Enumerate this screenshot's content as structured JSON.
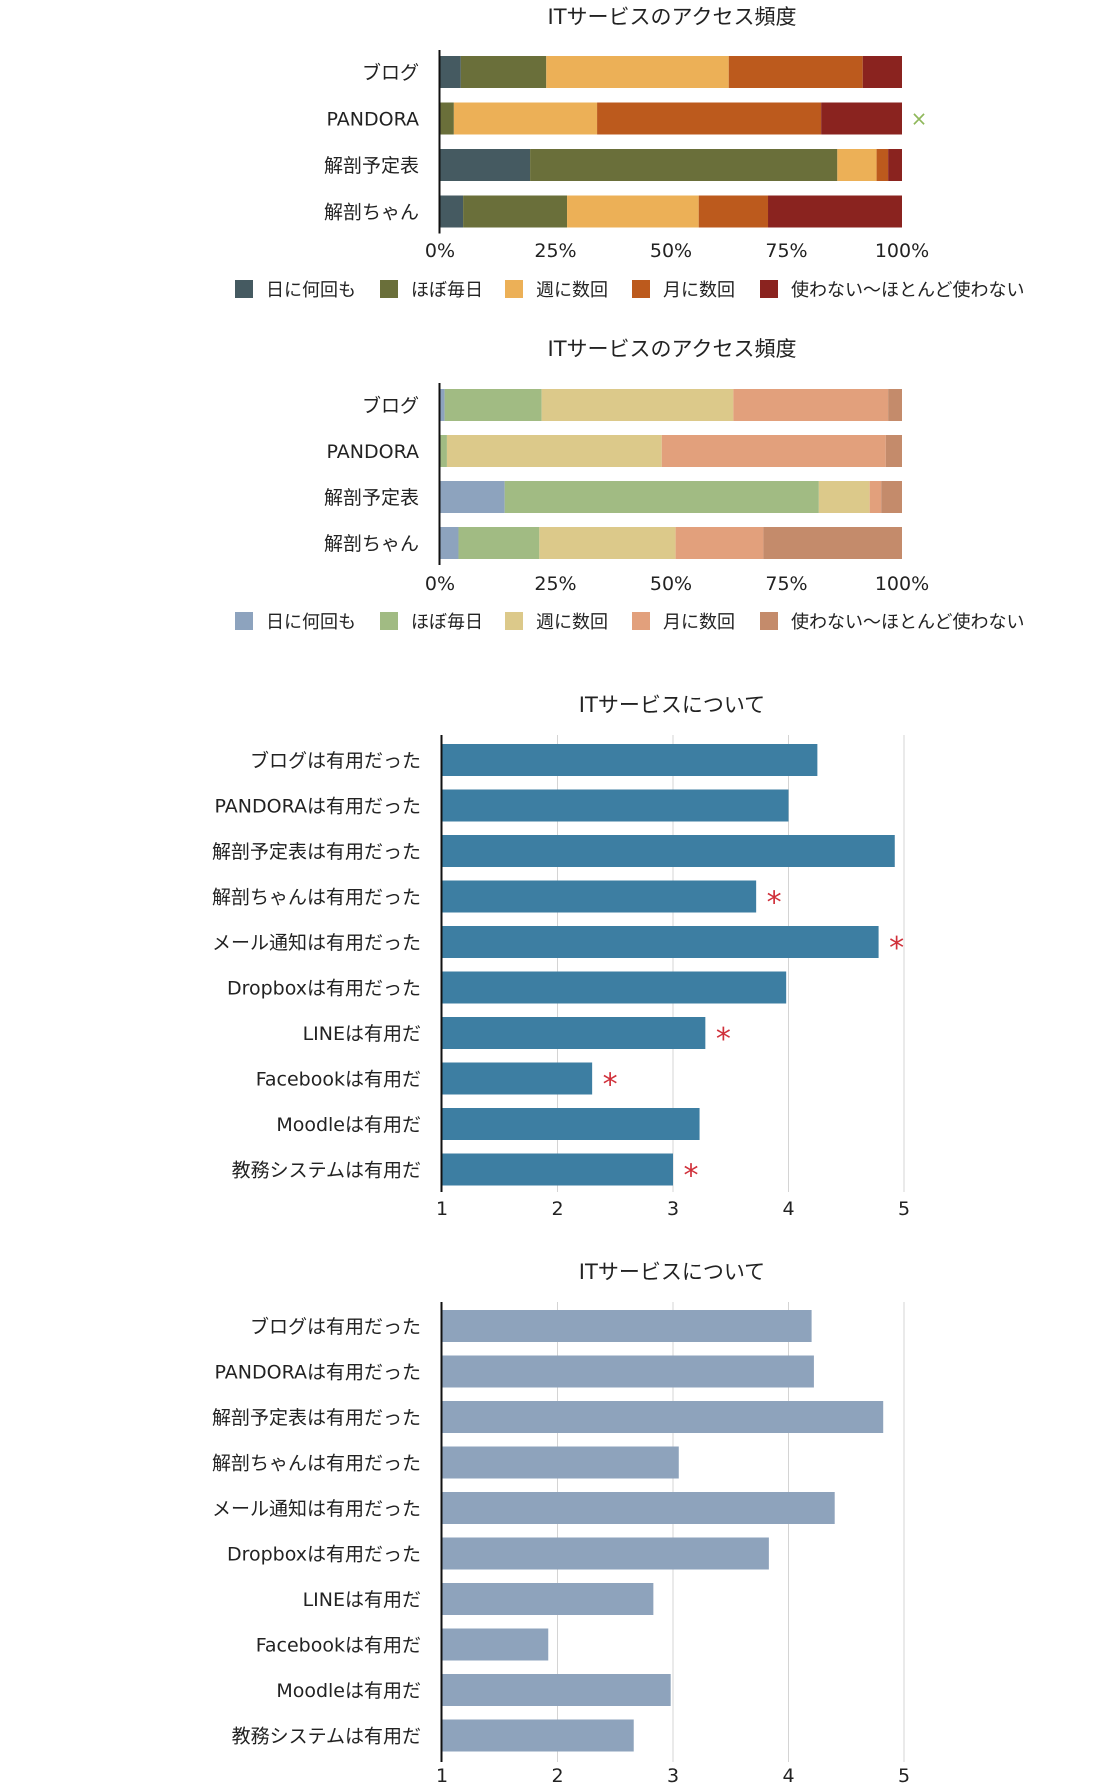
{
  "chart_data": [
    {
      "type": "bar",
      "orientation": "horizontal",
      "stacked": "percent",
      "title": "ITサービスのアクセス頻度",
      "categories": [
        "ブログ",
        "PANDORA",
        "解剖予定表",
        "解剖ちゃん"
      ],
      "series": [
        {
          "name": "日に何回も",
          "values": [
            4.5,
            0,
            19.5,
            5
          ],
          "color": "#455a61"
        },
        {
          "name": "ほぼ毎日",
          "values": [
            18.5,
            3,
            66.5,
            22.5
          ],
          "color": "#6a6f3a"
        },
        {
          "name": "週に数回",
          "values": [
            39.5,
            31,
            8.5,
            28.5
          ],
          "color": "#ecb057"
        },
        {
          "name": "月に数回",
          "values": [
            29,
            48.5,
            2.5,
            15
          ],
          "color": "#bc5a1d"
        },
        {
          "name": "使わない〜ほとんど使わない",
          "values": [
            8.5,
            17.5,
            3,
            29
          ],
          "color": "#8a231f"
        }
      ],
      "xticks": [
        "0%",
        "25%",
        "50%",
        "75%",
        "100%"
      ],
      "xlim": [
        0,
        100
      ],
      "legend": "bottom",
      "annotations": [
        {
          "category": "PANDORA",
          "symbol": "×"
        }
      ]
    },
    {
      "type": "bar",
      "orientation": "horizontal",
      "stacked": "percent",
      "title": "ITサービスのアクセス頻度",
      "categories": [
        "ブログ",
        "PANDORA",
        "解剖予定表",
        "解剖ちゃん"
      ],
      "series": [
        {
          "name": "日に何回も",
          "values": [
            1,
            0,
            14,
            4
          ],
          "color": "#8da3be"
        },
        {
          "name": "ほぼ毎日",
          "values": [
            21,
            1.5,
            68,
            17.5
          ],
          "color": "#a1bb83"
        },
        {
          "name": "週に数回",
          "values": [
            41.5,
            46.5,
            11,
            29.5
          ],
          "color": "#dcc98a"
        },
        {
          "name": "月に数回",
          "values": [
            33.5,
            48.5,
            2.5,
            19
          ],
          "color": "#e2a07c"
        },
        {
          "name": "使わない〜ほとんど使わない",
          "values": [
            3,
            3.5,
            4.5,
            30
          ],
          "color": "#c48b6b"
        }
      ],
      "xticks": [
        "0%",
        "25%",
        "50%",
        "75%",
        "100%"
      ],
      "xlim": [
        0,
        100
      ],
      "legend": "bottom",
      "annotations": []
    },
    {
      "type": "bar",
      "orientation": "horizontal",
      "title": "ITサービスについて",
      "categories": [
        "ブログは有用だった",
        "PANDORAは有用だった",
        "解剖予定表は有用だった",
        "解剖ちゃんは有用だった",
        "メール通知は有用だった",
        "Dropboxは有用だった",
        "LINEは有用だ",
        "Facebookは有用だ",
        "Moodleは有用だ",
        "教務システムは有用だ"
      ],
      "values": [
        4.25,
        4.0,
        4.92,
        3.72,
        4.78,
        3.98,
        3.28,
        2.3,
        3.23,
        3.0
      ],
      "color": "#3d7ea2",
      "xlim": [
        1,
        5
      ],
      "xticks": [
        "1",
        "2",
        "3",
        "4",
        "5"
      ],
      "annotations": [
        {
          "category": "解剖ちゃんは有用だった",
          "symbol": "*"
        },
        {
          "category": "メール通知は有用だった",
          "symbol": "*"
        },
        {
          "category": "LINEは有用だ",
          "symbol": "*"
        },
        {
          "category": "Facebookは有用だ",
          "symbol": "*"
        },
        {
          "category": "教務システムは有用だ",
          "symbol": "*"
        }
      ]
    },
    {
      "type": "bar",
      "orientation": "horizontal",
      "title": "ITサービスについて",
      "categories": [
        "ブログは有用だった",
        "PANDORAは有用だった",
        "解剖予定表は有用だった",
        "解剖ちゃんは有用だった",
        "メール通知は有用だった",
        "Dropboxは有用だった",
        "LINEは有用だ",
        "Facebookは有用だ",
        "Moodleは有用だ",
        "教務システムは有用だ"
      ],
      "values": [
        4.2,
        4.22,
        4.82,
        3.05,
        4.4,
        3.83,
        2.83,
        1.92,
        2.98,
        2.66
      ],
      "color": "#8ea3bc",
      "xlim": [
        1,
        5
      ],
      "xticks": [
        "1",
        "2",
        "3",
        "4",
        "5"
      ],
      "annotations": []
    }
  ]
}
